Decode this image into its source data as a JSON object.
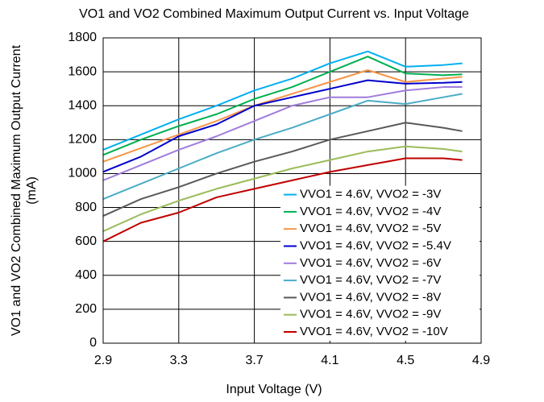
{
  "chart_data": {
    "type": "line",
    "title": "VO1 and VO2 Combined Maximum Output Current vs. Input Voltage",
    "y_label": "VO1 and VO2 Combined Maximum Output Current (mA)",
    "x_label": "Input Voltage (V)",
    "x": [
      2.9,
      3.1,
      3.3,
      3.5,
      3.7,
      3.9,
      4.1,
      4.3,
      4.5,
      4.7,
      4.8
    ],
    "series": [
      {
        "name": "VVO1 = 4.6V, VVO2 = -3V",
        "color": "#00b0f0",
        "values": [
          1140,
          1230,
          1320,
          1400,
          1490,
          1560,
          1650,
          1720,
          1630,
          1640,
          1650
        ]
      },
      {
        "name": "VVO1 = 4.6V, VVO2 = -4V",
        "color": "#00b050",
        "values": [
          1110,
          1200,
          1280,
          1350,
          1440,
          1510,
          1600,
          1690,
          1590,
          1580,
          1585
        ]
      },
      {
        "name": "VVO1 = 4.6V, VVO2 = -5V",
        "color": "#f79646",
        "values": [
          1070,
          1150,
          1230,
          1310,
          1400,
          1470,
          1540,
          1610,
          1540,
          1560,
          1570
        ]
      },
      {
        "name": "VVO1 = 4.6V, VVO2 = -5.4V",
        "color": "#0000cc",
        "values": [
          1010,
          1100,
          1220,
          1290,
          1400,
          1450,
          1500,
          1550,
          1530,
          1535,
          1540
        ]
      },
      {
        "name": "VVO1 = 4.6V, VVO2 = -6V",
        "color": "#a07cdc",
        "values": [
          960,
          1050,
          1140,
          1220,
          1310,
          1400,
          1450,
          1450,
          1490,
          1510,
          1510
        ]
      },
      {
        "name": "VVO1 = 4.6V, VVO2 = -7V",
        "color": "#4bacc6",
        "values": [
          850,
          940,
          1030,
          1120,
          1200,
          1270,
          1350,
          1430,
          1410,
          1450,
          1470
        ]
      },
      {
        "name": "VVO1 = 4.6V, VVO2 = -8V",
        "color": "#595959",
        "values": [
          750,
          850,
          920,
          1000,
          1070,
          1130,
          1200,
          1250,
          1300,
          1270,
          1250
        ]
      },
      {
        "name": "VVO1 = 4.6V, VVO2 = -9V",
        "color": "#9bbb59",
        "values": [
          660,
          760,
          840,
          910,
          970,
          1030,
          1080,
          1130,
          1160,
          1145,
          1130
        ]
      },
      {
        "name": "VVO1 = 4.6V, VVO2 = -10V",
        "color": "#c00000",
        "values": [
          600,
          710,
          770,
          860,
          910,
          960,
          1010,
          1050,
          1090,
          1090,
          1080
        ]
      }
    ],
    "xlim": [
      2.9,
      4.9
    ],
    "xticks": [
      2.9,
      3.3,
      3.7,
      4.1,
      4.5,
      4.9
    ],
    "ylim": [
      0,
      1800
    ],
    "yticks": [
      0,
      200,
      400,
      600,
      800,
      1000,
      1200,
      1400,
      1600,
      1800
    ],
    "grid": true,
    "legend": "lower right"
  }
}
